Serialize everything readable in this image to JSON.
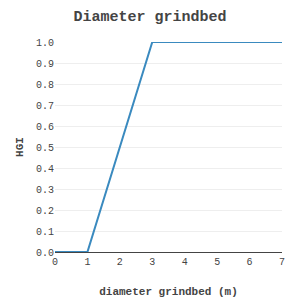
{
  "chart_data": {
    "type": "line",
    "title": "Diameter grindbed",
    "xlabel": "diameter grindbed (m)",
    "ylabel": "HGI",
    "x": [
      0,
      1,
      3,
      7
    ],
    "values": [
      0.0,
      0.0,
      1.0,
      1.0
    ],
    "color": "#3a8abf",
    "xlim": [
      0,
      7
    ],
    "ylim": [
      0.0,
      1.0
    ],
    "xticks": [
      0,
      1,
      2,
      3,
      4,
      5,
      6,
      7
    ],
    "yticks": [
      {
        "value": 0.0,
        "label": "0.0"
      },
      0.1,
      0.2,
      0.3,
      0.4,
      0.5,
      0.6,
      0.7,
      0.8,
      0.9,
      {
        "value": 1.0,
        "label": "1.0"
      }
    ],
    "grid": "y"
  }
}
